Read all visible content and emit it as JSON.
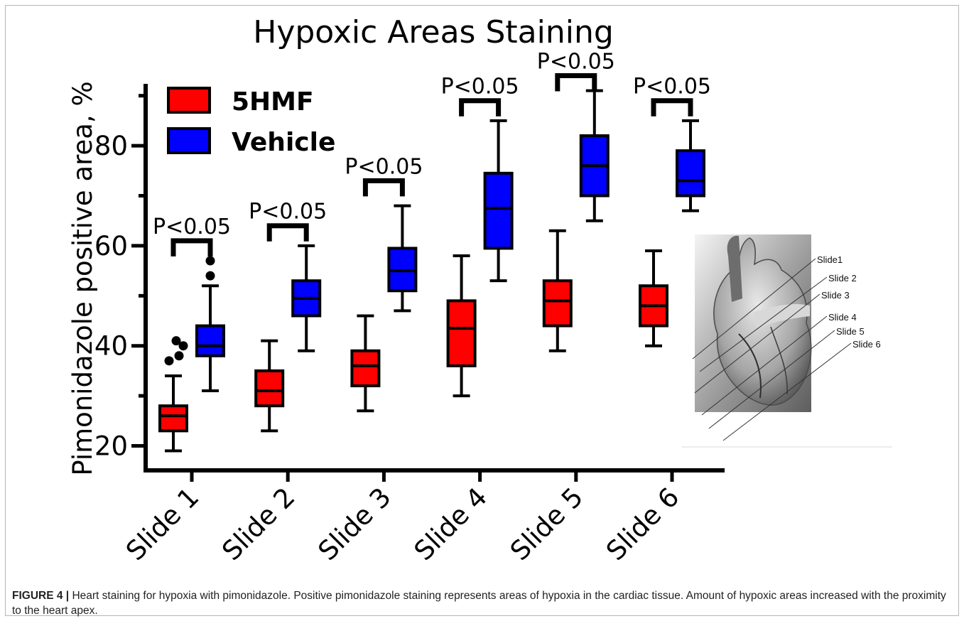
{
  "chart_data": {
    "type": "box",
    "title": "Hypoxic Areas Staining",
    "ylabel": "Pimonidazole positive area, %",
    "xlabel": "",
    "ylim": [
      15,
      91
    ],
    "yticks": [
      20,
      40,
      60,
      80
    ],
    "categories": [
      "Slide 1",
      "Slide 2",
      "Slide 3",
      "Slide 4",
      "Slide 5",
      "Slide 6"
    ],
    "legend_position": "top-left",
    "series": [
      {
        "name": "5HMF",
        "color": "#ff0000",
        "boxes": [
          {
            "min": 19,
            "q1": 23,
            "median": 26,
            "q3": 28,
            "max": 34,
            "outliers": [
              37,
              38,
              40,
              41
            ]
          },
          {
            "min": 23,
            "q1": 28,
            "median": 31,
            "q3": 35,
            "max": 41,
            "outliers": []
          },
          {
            "min": 27,
            "q1": 32,
            "median": 36,
            "q3": 39,
            "max": 46,
            "outliers": []
          },
          {
            "min": 30,
            "q1": 36,
            "median": 43.5,
            "q3": 49,
            "max": 58,
            "outliers": []
          },
          {
            "min": 39,
            "q1": 44,
            "median": 49,
            "q3": 53,
            "max": 63,
            "outliers": []
          },
          {
            "min": 40,
            "q1": 44,
            "median": 48,
            "q3": 52,
            "max": 59,
            "outliers": []
          }
        ]
      },
      {
        "name": "Vehicle",
        "color": "#0000ff",
        "boxes": [
          {
            "min": 31,
            "q1": 38,
            "median": 40,
            "q3": 44,
            "max": 52,
            "outliers": [
              54,
              57
            ]
          },
          {
            "min": 39,
            "q1": 46,
            "median": 49.5,
            "q3": 53,
            "max": 60,
            "outliers": []
          },
          {
            "min": 47,
            "q1": 51,
            "median": 55,
            "q3": 59.5,
            "max": 68,
            "outliers": []
          },
          {
            "min": 53,
            "q1": 59.5,
            "median": 67.5,
            "q3": 74.5,
            "max": 85,
            "outliers": []
          },
          {
            "min": 65,
            "q1": 70,
            "median": 76,
            "q3": 82,
            "max": 91,
            "outliers": []
          },
          {
            "min": 67,
            "q1": 70,
            "median": 73,
            "q3": 79,
            "max": 85,
            "outliers": []
          }
        ]
      }
    ],
    "significance": [
      {
        "category": "Slide 1",
        "label": "P<0.05",
        "y": 61
      },
      {
        "category": "Slide 2",
        "label": "P<0.05",
        "y": 64
      },
      {
        "category": "Slide 3",
        "label": "P<0.05",
        "y": 73
      },
      {
        "category": "Slide 4",
        "label": "P<0.05",
        "y": 89
      },
      {
        "category": "Slide 5",
        "label": "P<0.05",
        "y": 94
      },
      {
        "category": "Slide 6",
        "label": "P<0.05",
        "y": 89
      }
    ]
  },
  "heart_diagram": {
    "icon": "heart-illustration",
    "labels": [
      "Slide1",
      "Slide 2",
      "Slide 3",
      "Slide 4",
      "Slide 5",
      "Slide 6"
    ]
  },
  "caption": {
    "label": "FIGURE 4 |",
    "text": " Heart staining for hypoxia with pimonidazole. Positive pimonidazole staining represents areas of hypoxia in the cardiac tissue. Amount of hypoxic areas increased with the proximity to the heart apex."
  }
}
